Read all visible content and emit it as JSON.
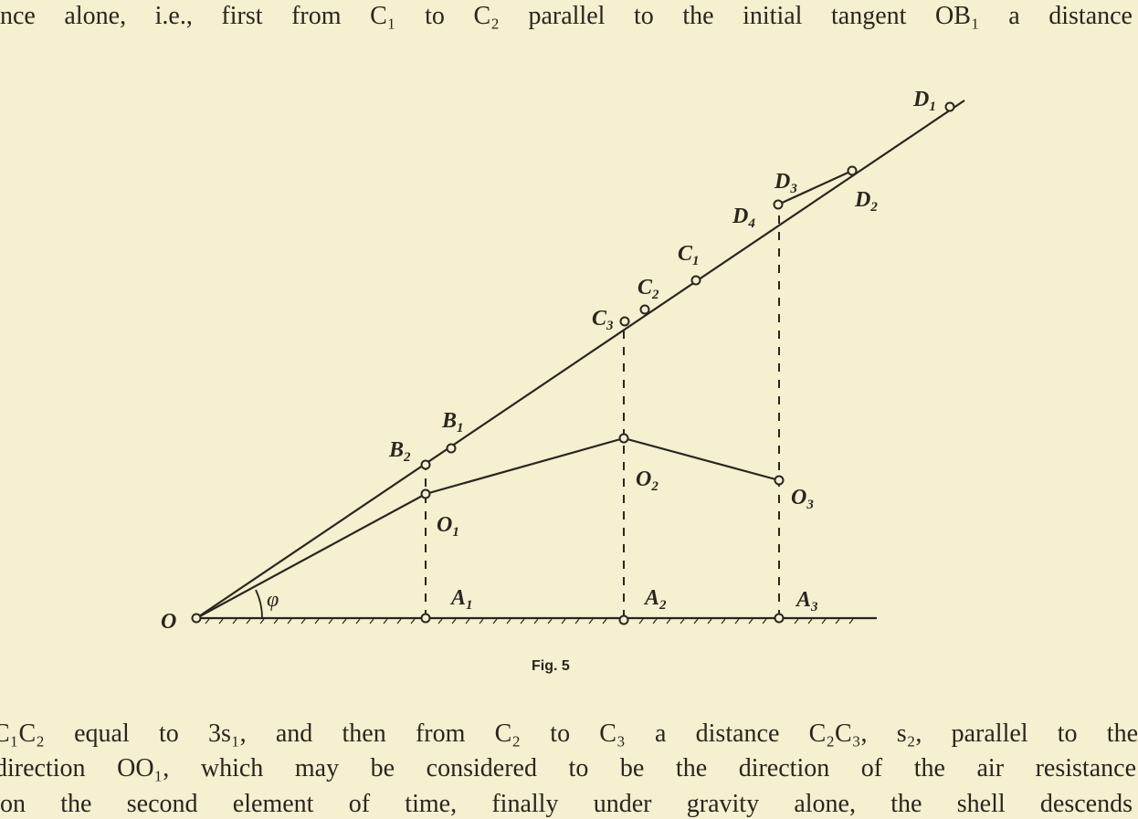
{
  "text": {
    "line_top": "nce alone, i.e., first from C₁ to C₂ parallel to the initial tangent OB₁ a distance",
    "line_bottom_1": "C₁C₂ equal to 3s₁, and then from C₂ to C₃ a distance C₂C₃, s₂, parallel to the",
    "line_bottom_2": "direction OO₁, which may be considered to be the direction of the air resistance",
    "line_bottom_3": "on the second element of time, finally under gravity alone, the shell descends"
  },
  "figure": {
    "caption": "Fig. 5",
    "labels": {
      "O": "O",
      "phi": "φ",
      "A1": "A",
      "A1_sub": "1",
      "A2": "A",
      "A2_sub": "2",
      "A3": "A",
      "A3_sub": "3",
      "O1": "O",
      "O1_sub": "1",
      "O2": "O",
      "O2_sub": "2",
      "O3": "O",
      "O3_sub": "3",
      "B1": "B",
      "B1_sub": "1",
      "B2": "B",
      "B2_sub": "2",
      "C1": "C",
      "C1_sub": "1",
      "C2": "C",
      "C2_sub": "2",
      "C3": "C",
      "C3_sub": "3",
      "D1": "D",
      "D1_sub": "1",
      "D2": "D",
      "D2_sub": "2",
      "D3": "D",
      "D3_sub": "3",
      "D4": "D",
      "D4_sub": "4"
    }
  }
}
